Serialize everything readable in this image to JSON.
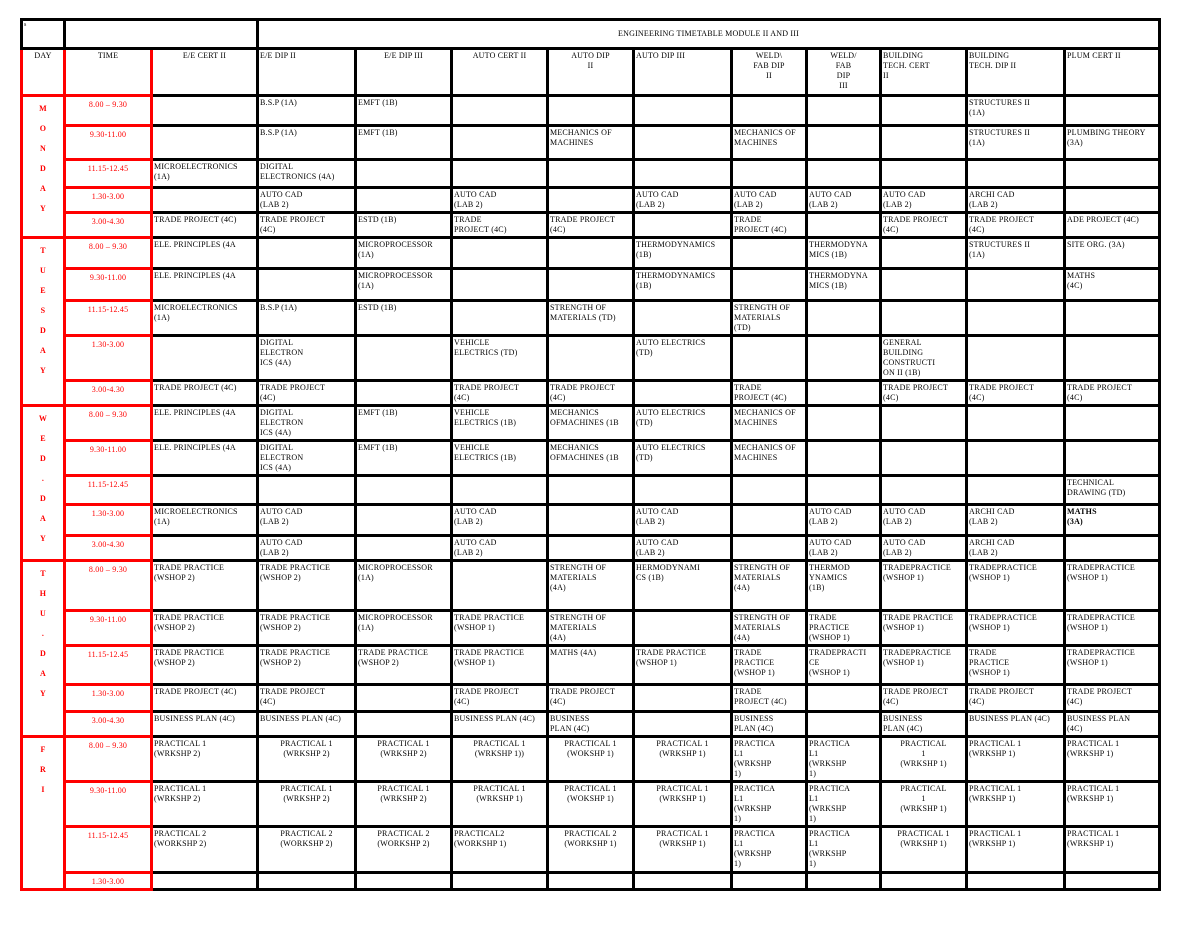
{
  "document": {
    "corner_mark": "s",
    "title": "ENGINEERING TIMETABLE MODULE II AND III",
    "colors": {
      "grid": "#000000",
      "day_time_grid": "#ff0000",
      "day_time_text": "#ff0000"
    }
  },
  "header": {
    "day": "DAY",
    "time": "TIME",
    "courses": [
      "E/E CERT II",
      "E/E DIP II",
      "E/E DIP III",
      "AUTO CERT II",
      "AUTO DIP\nII",
      "AUTO DIP III",
      "WELD\\\nFAB DIP\nII",
      "WELD/\nFAB\nDIP\nIII",
      " BUILDING\nTECH. CERT\nII",
      "BUILDING\nTECH. DIP II",
      "PLUM CERT II"
    ]
  },
  "days": [
    {
      "label": "M\nO\nN\nD\nA\nY",
      "slots": [
        {
          "time": "8.00 – 9.30",
          "cells": [
            "",
            "B.S.P (1A)",
            "EMFT (1B)",
            "",
            "",
            "",
            "",
            "",
            "",
            "STRUCTURES II\n(1A)",
            ""
          ]
        },
        {
          "time": "9.30-11.00",
          "cells": [
            "",
            "B.S.P (1A)",
            "EMFT (1B)",
            "",
            "MECHANICS OF\nMACHINES",
            "",
            "MECHANICS OF\nMACHINES",
            "",
            "",
            "STRUCTURES II\n(1A)",
            "PLUMBING THEORY\n(3A)"
          ]
        },
        {
          "time": "11.15-12.45",
          "cells": [
            "MICROELECTRONICS\n(1A)",
            "DIGITAL\nELECTRONICS (4A)",
            "",
            "",
            "",
            "",
            "",
            "",
            "",
            "",
            ""
          ]
        },
        {
          "time": "1.30-3.00",
          "cells": [
            "",
            "AUTO CAD\n(LAB 2)",
            "",
            "AUTO CAD\n(LAB 2)",
            "",
            "AUTO CAD\n(LAB 2)",
            "AUTO CAD\n(LAB 2)",
            "AUTO CAD\n(LAB 2)",
            "AUTO CAD\n(LAB 2)",
            "ARCHI CAD\n(LAB 2)",
            ""
          ]
        },
        {
          "time": "3.00-4.30",
          "cells": [
            "TRADE PROJECT (4C)",
            "TRADE PROJECT\n(4C)",
            "ESTD (1B)",
            "TRADE\nPROJECT (4C)",
            "TRADE PROJECT\n(4C)",
            "",
            "TRADE\nPROJECT (4C)",
            "",
            "TRADE PROJECT\n(4C)",
            "TRADE PROJECT\n(4C)",
            "ADE PROJECT (4C)"
          ]
        }
      ]
    },
    {
      "label": "T\nU\nE\nS\nD\nA\nY",
      "slots": [
        {
          "time": "8.00 – 9.30",
          "cells": [
            "ELE. PRINCIPLES (4A",
            "",
            "MICROPROCESSOR\n(1A)",
            "",
            "",
            "THERMODYNAMICS\n(1B)",
            "",
            "THERMODYNA\nMICS (1B)",
            "",
            "STRUCTURES II\n(1A)",
            "SITE ORG. (3A)"
          ]
        },
        {
          "time": "9.30-11.00",
          "cells": [
            "ELE. PRINCIPLES (4A",
            "",
            "MICROPROCESSOR\n(1A)",
            "",
            "",
            "THERMODYNAMICS\n(1B)",
            "",
            "THERMODYNA\nMICS (1B)",
            "",
            "",
            "MATHS\n(4C)"
          ]
        },
        {
          "time": "11.15-12.45",
          "cells": [
            "MICROELECTRONICS\n(1A)",
            "B.S.P (1A)",
            "ESTD (1B)",
            "",
            "STRENGTH OF\nMATERIALS (TD)",
            "",
            "STRENGTH OF\nMATERIALS\n(TD)",
            "",
            "",
            "",
            ""
          ]
        },
        {
          "time": "1.30-3.00",
          "cells": [
            "",
            "DIGITAL\nELECTRON\nICS (4A)",
            "",
            "VEHICLE\nELECTRICS (TD)",
            "",
            "AUTO ELECTRICS\n(TD)",
            "",
            "",
            "GENERAL\nBUILDING\nCONSTRUCTI\nON II (1B)",
            "",
            ""
          ]
        },
        {
          "time": "3.00-4.30",
          "cells": [
            "TRADE PROJECT (4C)",
            "TRADE PROJECT\n(4C)",
            "",
            "TRADE PROJECT\n(4C)",
            "TRADE PROJECT\n(4C)",
            "",
            "TRADE\nPROJECT (4C)",
            "",
            "TRADE PROJECT\n(4C)",
            "TRADE PROJECT\n(4C)",
            "TRADE PROJECT\n(4C)"
          ]
        }
      ]
    },
    {
      "label": "W\nE\nD\n.\nD\nA\nY",
      "slots": [
        {
          "time": "8.00 – 9.30",
          "cells": [
            "ELE. PRINCIPLES (4A",
            "DIGITAL\nELECTRON\nICS (4A)",
            "EMFT (1B)",
            "VEHICLE\nELECTRICS (1B)",
            "MECHANICS\nOFMACHINES (1B",
            "AUTO ELECTRICS\n(TD)",
            "MECHANICS OF\nMACHINES",
            "",
            "",
            "",
            ""
          ]
        },
        {
          "time": "9.30-11.00",
          "cells": [
            "ELE. PRINCIPLES (4A",
            "DIGITAL\nELECTRON\nICS (4A)",
            "EMFT (1B)",
            "VEHICLE\nELECTRICS (1B)",
            "MECHANICS\nOFMACHINES (1B",
            "AUTO ELECTRICS\n(TD)",
            "MECHANICS OF\nMACHINES",
            "",
            "",
            "",
            ""
          ]
        },
        {
          "time": "11.15-12.45",
          "cells": [
            "",
            "",
            "",
            "",
            "",
            "",
            "",
            "",
            "",
            "",
            "TECHNICAL\nDRAWING (TD)"
          ]
        },
        {
          "time": "1.30-3.00",
          "cells": [
            "MICROELECTRONICS\n(1A)",
            "AUTO CAD\n(LAB 2)",
            "",
            "AUTO CAD\n(LAB 2)",
            "",
            "AUTO CAD\n(LAB 2)",
            "",
            "AUTO CAD\n(LAB 2)",
            "AUTO CAD\n(LAB 2)",
            "ARCHI CAD\n(LAB 2)",
            "MATHS\n(3A)"
          ]
        },
        {
          "time": "3.00-4.30",
          "cells": [
            "",
            "AUTO CAD\n(LAB 2)",
            "",
            "AUTO CAD\n(LAB 2)",
            "",
            "AUTO CAD\n(LAB 2)",
            "",
            "AUTO CAD\n(LAB 2)",
            "AUTO CAD\n(LAB 2)",
            "ARCHI CAD\n(LAB 2)",
            ""
          ]
        }
      ]
    },
    {
      "label": "T\nH\nU\n.\nD\nA\nY",
      "slots": [
        {
          "time": "8.00 – 9.30",
          "cells": [
            "TRADE PRACTICE\n(WSHOP 2)",
            "TRADE PRACTICE\n(WSHOP 2)",
            "MICROPROCESSOR\n(1A)",
            "",
            "STRENGTH OF\nMATERIALS\n(4A)",
            "HERMODYNAMI\nCS (1B)",
            "STRENGTH OF\nMATERIALS\n(4A)",
            "THERMOD\nYNAMICS\n(1B)",
            " TRADEPRACTICE\n(WSHOP 1)",
            "TRADEPRACTICE\n(WSHOP 1)",
            "TRADEPRACTICE\n(WSHOP 1)"
          ]
        },
        {
          "time": "9.30-11.00",
          "cells": [
            "TRADE PRACTICE\n(WSHOP 2)",
            "TRADE PRACTICE\n(WSHOP 2)",
            "MICROPROCESSOR\n(1A)",
            "TRADE PRACTICE\n(WSHOP 1)",
            "STRENGTH OF\nMATERIALS\n(4A)",
            "",
            "STRENGTH OF\nMATERIALS\n(4A)",
            "TRADE\nPRACTICE\n(WSHOP 1)",
            "TRADE PRACTICE\n(WSHOP 1)",
            "TRADEPRACTICE\n(WSHOP 1)",
            "TRADEPRACTICE\n(WSHOP 1)"
          ]
        },
        {
          "time": "11.15-12.45",
          "cells": [
            "TRADE PRACTICE\n(WSHOP 2)",
            "TRADE PRACTICE\n(WSHOP 2)",
            "TRADE PRACTICE\n(WSHOP 2)",
            "TRADE PRACTICE\n(WSHOP 1)",
            "MATHS (4A)",
            "TRADE PRACTICE\n(WSHOP 1)",
            "TRADE\nPRACTICE\n(WSHOP 1)",
            "TRADEPRACTI\nCE\n(WSHOP 1)",
            "TRADEPRACTICE\n(WSHOP 1)",
            "TRADE\nPRACTICE\n(WSHOP 1)",
            "TRADEPRACTICE\n(WSHOP 1)"
          ]
        },
        {
          "time": "1.30-3.00",
          "cells": [
            "TRADE PROJECT (4C)",
            "TRADE PROJECT\n(4C)",
            "",
            "TRADE PROJECT\n(4C)",
            "TRADE PROJECT\n(4C)",
            "",
            "TRADE\nPROJECT (4C)",
            "",
            "TRADE PROJECT\n(4C)",
            "TRADE PROJECT\n(4C)",
            "TRADE PROJECT\n(4C)"
          ]
        },
        {
          "time": "3.00-4.30",
          "cells": [
            "BUSINESS PLAN (4C)",
            "BUSINESS PLAN (4C)",
            "",
            "BUSINESS PLAN (4C)",
            "BUSINESS\nPLAN (4C)",
            "",
            "BUSINESS\nPLAN (4C)",
            "",
            "BUSINESS\nPLAN (4C)",
            "BUSINESS PLAN (4C)",
            "BUSINESS PLAN\n(4C)"
          ]
        }
      ]
    },
    {
      "label": "F\nR\nI",
      "slots": [
        {
          "time": "8.00 – 9.30",
          "cells": [
            "PRACTICAL 1\n(WRKSHP 2)",
            "PRACTICAL 1\n(WRKSHP 2)",
            "PRACTICAL 1\n(WRKSHP 2)",
            "PRACTICAL 1\n(WRKSHP 1))",
            "PRACTICAL 1\n(WOKSHP 1)",
            "PRACTICAL 1\n(WRKSHP 1)",
            "PRACTICA\nL1\n(WRKSHP\n1)",
            "PRACTICA\nL1\n(WRKSHP\n1)",
            "PRACTICAL\n1\n(WRKSHP 1)",
            "PRACTICAL 1\n(WRKSHP 1)",
            "PRACTICAL 1\n(WRKSHP 1)"
          ]
        },
        {
          "time": "9.30-11.00",
          "cells": [
            "PRACTICAL 1\n(WRKSHP 2)",
            "PRACTICAL 1\n(WRKSHP 2)",
            "PRACTICAL 1\n(WRKSHP 2)",
            "PRACTICAL 1\n(WRKSHP 1)",
            "PRACTICAL 1\n(WOKSHP 1)",
            "PRACTICAL 1\n(WRKSHP 1)",
            "PRACTICA\nL1\n(WRKSHP\n1)",
            "PRACTICA\nL1\n(WRKSHP\n1)",
            "PRACTICAL\n1\n(WRKSHP 1)",
            "PRACTICAL 1\n(WRKSHP 1)",
            "PRACTICAL 1\n(WRKSHP 1)"
          ]
        },
        {
          "time": "11.15-12.45",
          "cells": [
            "PRACTICAL 2\n(WORKSHP 2)",
            "PRACTICAL 2\n(WORKSHP 2)",
            "PRACTICAL 2\n(WORKSHP 2)",
            "PRACTICAL2\n(WORKSHP 1)",
            "PRACTICAL 2\n(WORKSHP 1)",
            "PRACTICAL 1\n(WRKSHP 1)",
            "PRACTICA\nL1\n(WRKSHP\n1)",
            "PRACTICA\nL1\n(WRKSHP\n1)",
            "PRACTICAL 1\n(WRKSHP 1)",
            "PRACTICAL 1\n(WRKSHP 1)",
            "PRACTICAL 1\n(WRKSHP 1)"
          ]
        },
        {
          "time": "1.30-3.00",
          "cells": [
            "",
            "",
            "",
            "",
            "",
            "",
            "",
            "",
            "",
            "",
            ""
          ]
        }
      ]
    }
  ]
}
